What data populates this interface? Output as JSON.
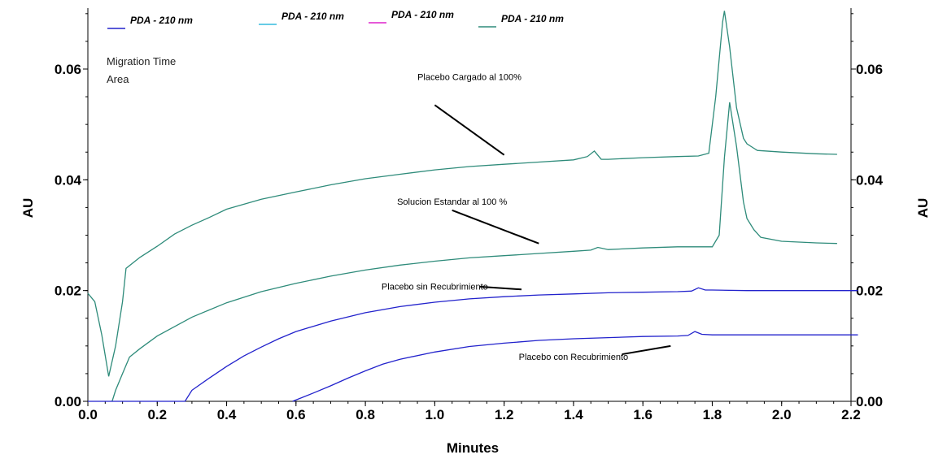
{
  "chart_data": {
    "type": "line",
    "title": "",
    "xlabel": "Minutes",
    "ylabel": "AU",
    "ylabel_right": "AU",
    "xlim": [
      0.0,
      2.2
    ],
    "ylim": [
      0.0,
      0.071
    ],
    "x_ticks": [
      "0.0",
      "0.2",
      "0.4",
      "0.6",
      "0.8",
      "1.0",
      "1.2",
      "1.4",
      "1.6",
      "1.8",
      "2.0",
      "2.2"
    ],
    "y_ticks": [
      "0.00",
      "0.02",
      "0.04",
      "0.06"
    ],
    "grid": false,
    "legend_position": "top",
    "legend": [
      {
        "label": "PDA - 210 nm",
        "color": "#2222cc"
      },
      {
        "label": "PDA - 210 nm",
        "color": "#33bbdd"
      },
      {
        "label": "PDA - 210 nm",
        "color": "#dd22cc"
      },
      {
        "label": "PDA - 210 nm",
        "color": "#2e8b7a"
      }
    ],
    "info_text": [
      "Migration Time",
      "Area"
    ],
    "annotations": [
      {
        "text": "Placebo Cargado al 100%",
        "x": 1.1,
        "y": 0.058
      },
      {
        "text": "Solucion Estandar al 100 %",
        "x": 1.05,
        "y": 0.0355
      },
      {
        "text": "Placebo sin Recubrimiento",
        "x": 1.0,
        "y": 0.0202
      },
      {
        "text": "Placebo con Recubrimiento",
        "x": 1.4,
        "y": 0.0075
      }
    ],
    "series": [
      {
        "color": "#2e8b7a",
        "x": [
          0.0,
          0.02,
          0.04,
          0.06,
          0.08,
          0.1,
          0.11,
          0.15,
          0.2,
          0.25,
          0.3,
          0.35,
          0.4,
          0.5,
          0.6,
          0.7,
          0.8,
          0.9,
          1.0,
          1.1,
          1.2,
          1.3,
          1.4,
          1.44,
          1.46,
          1.48,
          1.5,
          1.6,
          1.7,
          1.76,
          1.79,
          1.81,
          1.83,
          1.835,
          1.85,
          1.87,
          1.89,
          1.9,
          1.92,
          1.93,
          2.0,
          2.1,
          2.16
        ],
        "y": [
          0.0195,
          0.018,
          0.012,
          0.0045,
          0.01,
          0.018,
          0.024,
          0.026,
          0.028,
          0.0302,
          0.0318,
          0.0332,
          0.0347,
          0.0365,
          0.0378,
          0.0391,
          0.0402,
          0.041,
          0.0418,
          0.0424,
          0.0428,
          0.0432,
          0.0436,
          0.0442,
          0.0452,
          0.0437,
          0.0437,
          0.044,
          0.0442,
          0.0443,
          0.0448,
          0.055,
          0.0685,
          0.0705,
          0.064,
          0.053,
          0.0475,
          0.0465,
          0.0457,
          0.0453,
          0.045,
          0.0447,
          0.0446
        ]
      },
      {
        "color": "#2e8b7a",
        "x": [
          0.07,
          0.08,
          0.1,
          0.12,
          0.15,
          0.2,
          0.3,
          0.4,
          0.5,
          0.6,
          0.7,
          0.8,
          0.9,
          1.0,
          1.1,
          1.2,
          1.3,
          1.4,
          1.45,
          1.47,
          1.5,
          1.6,
          1.7,
          1.8,
          1.82,
          1.835,
          1.85,
          1.87,
          1.89,
          1.9,
          1.92,
          1.94,
          2.0,
          2.1,
          2.16
        ],
        "y": [
          0.0,
          0.002,
          0.005,
          0.008,
          0.0095,
          0.0118,
          0.0152,
          0.0178,
          0.0198,
          0.0213,
          0.0226,
          0.0237,
          0.0246,
          0.0253,
          0.0259,
          0.0263,
          0.0267,
          0.0271,
          0.0273,
          0.0278,
          0.0274,
          0.0277,
          0.0279,
          0.0279,
          0.03,
          0.044,
          0.054,
          0.046,
          0.036,
          0.033,
          0.031,
          0.0296,
          0.0289,
          0.0286,
          0.0285
        ]
      },
      {
        "color": "#2222cc",
        "x": [
          0.0,
          0.05,
          0.1,
          0.15,
          0.2,
          0.28,
          0.3,
          0.35,
          0.4,
          0.45,
          0.5,
          0.55,
          0.6,
          0.7,
          0.8,
          0.9,
          1.0,
          1.1,
          1.2,
          1.3,
          1.4,
          1.5,
          1.6,
          1.7,
          1.74,
          1.76,
          1.78,
          1.8,
          1.9,
          2.0,
          2.1,
          2.22
        ],
        "y": [
          0.0,
          0.0,
          0.0,
          0.0,
          0.0,
          0.0,
          0.002,
          0.0042,
          0.0063,
          0.0082,
          0.0098,
          0.0113,
          0.0126,
          0.0145,
          0.016,
          0.0171,
          0.0179,
          0.0185,
          0.0189,
          0.0192,
          0.0194,
          0.0196,
          0.0197,
          0.0198,
          0.0199,
          0.0205,
          0.0201,
          0.0201,
          0.02,
          0.02,
          0.02,
          0.02
        ]
      },
      {
        "color": "#2222cc",
        "x": [
          0.59,
          0.65,
          0.7,
          0.75,
          0.8,
          0.85,
          0.9,
          1.0,
          1.1,
          1.2,
          1.3,
          1.4,
          1.5,
          1.6,
          1.7,
          1.73,
          1.75,
          1.77,
          1.8,
          1.9,
          2.0,
          2.1,
          2.22
        ],
        "y": [
          0.0,
          0.0015,
          0.0028,
          0.0042,
          0.0055,
          0.0067,
          0.0076,
          0.0089,
          0.0099,
          0.0105,
          0.011,
          0.0113,
          0.0115,
          0.0117,
          0.0118,
          0.0119,
          0.0126,
          0.0121,
          0.012,
          0.012,
          0.012,
          0.012,
          0.012
        ]
      }
    ]
  }
}
